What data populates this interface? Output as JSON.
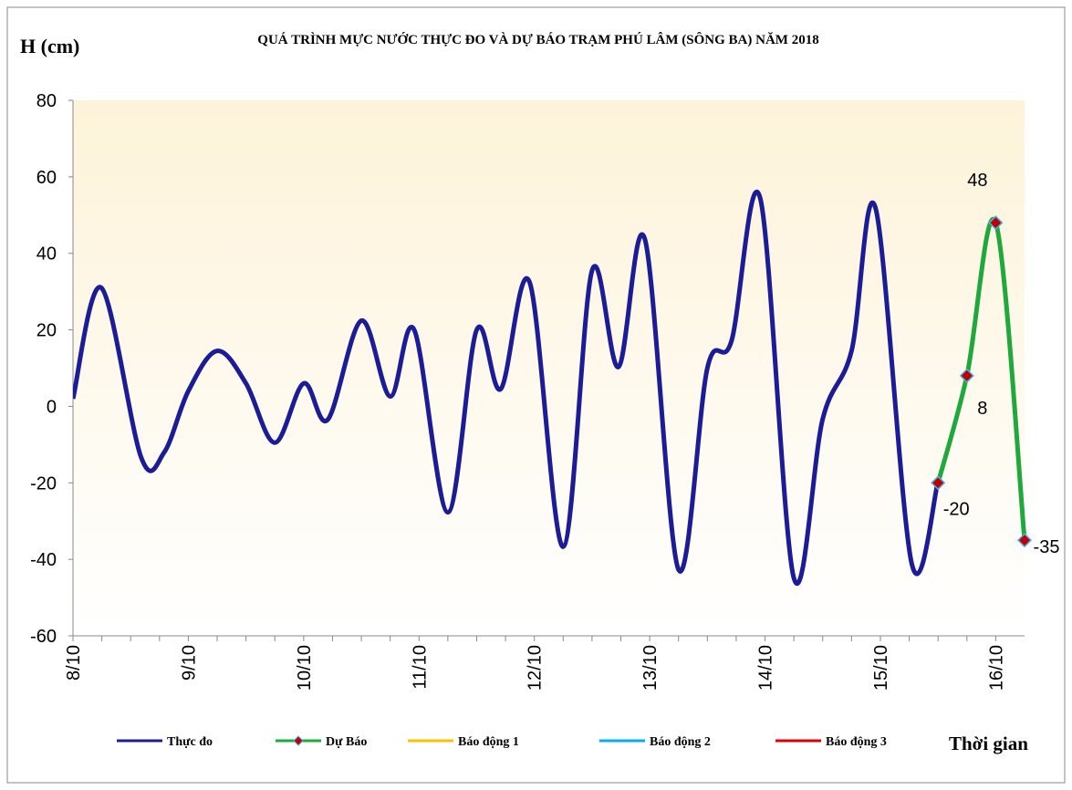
{
  "chart_data": {
    "type": "line",
    "title": "QUÁ TRÌNH MỰC NƯỚC THỰC ĐO VÀ DỰ BÁO TRẠM PHÚ LÂM (SÔNG BA) NĂM 2018",
    "y_label": "H (cm)",
    "x_label": "Thời gian",
    "xlim": [
      0,
      198
    ],
    "ylim": [
      -60,
      80
    ],
    "yticks": [
      -60,
      -40,
      -20,
      0,
      20,
      40,
      60,
      80
    ],
    "xticks": [
      {
        "value": 0,
        "label": "8/10"
      },
      {
        "value": 24,
        "label": "9/10"
      },
      {
        "value": 48,
        "label": "10/10"
      },
      {
        "value": 72,
        "label": "11/10"
      },
      {
        "value": 96,
        "label": "12/10"
      },
      {
        "value": 120,
        "label": "13/10"
      },
      {
        "value": 144,
        "label": "14/10"
      },
      {
        "value": 168,
        "label": "15/10"
      },
      {
        "value": 192,
        "label": "16/10"
      }
    ],
    "xminorticks": [
      6,
      12,
      18,
      30,
      36,
      42,
      54,
      60,
      66,
      78,
      84,
      90,
      102,
      108,
      114,
      126,
      132,
      138,
      150,
      156,
      162,
      174,
      180,
      186
    ],
    "series": [
      {
        "name": "Thực đo",
        "color": "#1c1c96",
        "x": [
          0,
          5.9,
          14.2,
          19,
          24,
          30,
          36,
          42,
          48,
          53,
          60,
          66,
          71,
          78,
          84,
          89,
          95,
          102,
          108,
          113.5,
          119,
          126,
          132,
          137,
          143,
          150,
          156,
          162,
          167,
          174.5,
          180
        ],
        "values": [
          2,
          31,
          -13.4,
          -12,
          4,
          14.5,
          6,
          -9.5,
          6,
          -3.5,
          22.4,
          2.6,
          20,
          -27.7,
          20,
          4.5,
          32.5,
          -36.7,
          35.5,
          10.3,
          43.7,
          -42.7,
          10,
          17,
          54.4,
          -44.9,
          -3.3,
          14.5,
          51.8,
          -41,
          -19.6
        ]
      },
      {
        "name": "Dự Báo",
        "color": "#1fa83c",
        "marker": true,
        "x": [
          180,
          186,
          192,
          198
        ],
        "values": [
          -20,
          8,
          48,
          -35
        ]
      },
      {
        "name": "Báo động 1",
        "color": "#ffc000",
        "x": [],
        "values": []
      },
      {
        "name": "Báo động 2",
        "color": "#00b0f0",
        "x": [],
        "values": []
      },
      {
        "name": "Báo động 3",
        "color": "#e00000",
        "x": [],
        "values": []
      }
    ]
  }
}
